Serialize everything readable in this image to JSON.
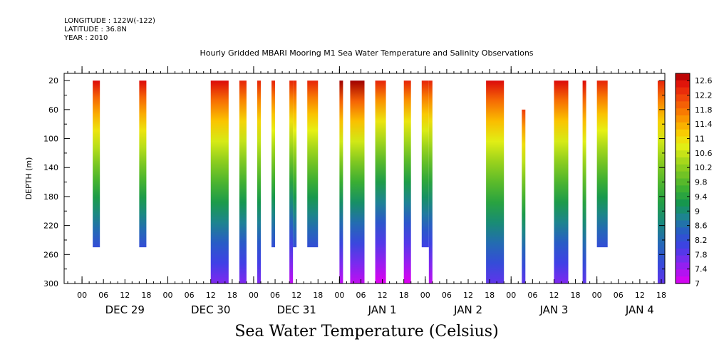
{
  "meta": {
    "longitude": "LONGITUDE : 122W(-122)",
    "latitude": "LATITUDE : 36.8N",
    "year": "YEAR : 2010"
  },
  "chart_data": {
    "type": "heatmap",
    "title": "Hourly Gridded MBARI Mooring M1 Sea Water Temperature and Salinity Observations",
    "bottom_title": "Sea Water Temperature (Celsius)",
    "ylabel": "DEPTH (m)",
    "ylim": [
      300,
      10
    ],
    "y_ticks": [
      "20",
      "60",
      "100",
      "140",
      "180",
      "220",
      "260",
      "300"
    ],
    "x_hour_ticks": [
      "00",
      "06",
      "12",
      "18",
      "00",
      "06",
      "12",
      "18",
      "00",
      "06",
      "12",
      "18",
      "00",
      "06",
      "12",
      "18",
      "00",
      "06",
      "12",
      "18",
      "00",
      "06",
      "12",
      "18",
      "00",
      "06",
      "12",
      "18"
    ],
    "x_day_labels": [
      "DEC 29",
      "DEC 30",
      "DEC 31",
      "JAN  1",
      "JAN  2",
      "JAN  3",
      "JAN  4"
    ],
    "xlim_hours": [
      -5,
      163
    ],
    "colorbar": {
      "levels": [
        "12.6",
        "12.2",
        "11.8",
        "11.4",
        "11",
        "10.6",
        "10.2",
        "9.8",
        "9.4",
        "9",
        "8.6",
        "8.2",
        "7.8",
        "7.4",
        "7"
      ],
      "min": 7,
      "max": 12.8
    },
    "columns": [
      {
        "start_hour": 3,
        "end_hour": 5,
        "depth_top": 20,
        "depth_bottom": 250,
        "temp_top": 12.6,
        "temp_bottom": 8.2
      },
      {
        "start_hour": 16,
        "end_hour": 18,
        "depth_top": 20,
        "depth_bottom": 250,
        "temp_top": 12.6,
        "temp_bottom": 8.2
      },
      {
        "start_hour": 36,
        "end_hour": 41,
        "depth_top": 20,
        "depth_bottom": 300,
        "temp_top": 12.6,
        "temp_bottom": 7.6
      },
      {
        "start_hour": 44,
        "end_hour": 46,
        "depth_top": 20,
        "depth_bottom": 300,
        "temp_top": 12.4,
        "temp_bottom": 7.6
      },
      {
        "start_hour": 49,
        "end_hour": 50,
        "depth_top": 20,
        "depth_bottom": 300,
        "temp_top": 12.4,
        "temp_bottom": 7.6
      },
      {
        "start_hour": 53,
        "end_hour": 54,
        "depth_top": 20,
        "depth_bottom": 250,
        "temp_top": 12.4,
        "temp_bottom": 8.2
      },
      {
        "start_hour": 58,
        "end_hour": 59,
        "depth_top": 20,
        "depth_bottom": 300,
        "temp_top": 12.4,
        "temp_bottom": 7.2
      },
      {
        "start_hour": 59,
        "end_hour": 60,
        "depth_top": 20,
        "depth_bottom": 250,
        "temp_top": 12.4,
        "temp_bottom": 8.2
      },
      {
        "start_hour": 63,
        "end_hour": 66,
        "depth_top": 20,
        "depth_bottom": 250,
        "temp_top": 12.4,
        "temp_bottom": 8.2
      },
      {
        "start_hour": 72,
        "end_hour": 73,
        "depth_top": 20,
        "depth_bottom": 300,
        "temp_top": 12.8,
        "temp_bottom": 7.2
      },
      {
        "start_hour": 75,
        "end_hour": 79,
        "depth_top": 20,
        "depth_bottom": 300,
        "temp_top": 12.8,
        "temp_bottom": 7.2
      },
      {
        "start_hour": 82,
        "end_hour": 85,
        "depth_top": 20,
        "depth_bottom": 300,
        "temp_top": 12.4,
        "temp_bottom": 7.0
      },
      {
        "start_hour": 90,
        "end_hour": 92,
        "depth_top": 20,
        "depth_bottom": 300,
        "temp_top": 12.4,
        "temp_bottom": 7.0
      },
      {
        "start_hour": 95,
        "end_hour": 97,
        "depth_top": 20,
        "depth_bottom": 250,
        "temp_top": 12.4,
        "temp_bottom": 8.0
      },
      {
        "start_hour": 97,
        "end_hour": 98,
        "depth_top": 20,
        "depth_bottom": 300,
        "temp_top": 12.4,
        "temp_bottom": 7.2
      },
      {
        "start_hour": 113,
        "end_hour": 118,
        "depth_top": 20,
        "depth_bottom": 300,
        "temp_top": 12.6,
        "temp_bottom": 7.8
      },
      {
        "start_hour": 123,
        "end_hour": 124,
        "depth_top": 60,
        "depth_bottom": 300,
        "temp_top": 12.2,
        "temp_bottom": 7.8
      },
      {
        "start_hour": 132,
        "end_hour": 136,
        "depth_top": 20,
        "depth_bottom": 300,
        "temp_top": 12.6,
        "temp_bottom": 7.6
      },
      {
        "start_hour": 140,
        "end_hour": 141,
        "depth_top": 20,
        "depth_bottom": 300,
        "temp_top": 12.6,
        "temp_bottom": 7.8
      },
      {
        "start_hour": 144,
        "end_hour": 147,
        "depth_top": 20,
        "depth_bottom": 250,
        "temp_top": 12.4,
        "temp_bottom": 8.2
      },
      {
        "start_hour": 161,
        "end_hour": 163,
        "depth_top": 20,
        "depth_bottom": 300,
        "temp_top": 12.4,
        "temp_bottom": 7.8
      }
    ]
  }
}
